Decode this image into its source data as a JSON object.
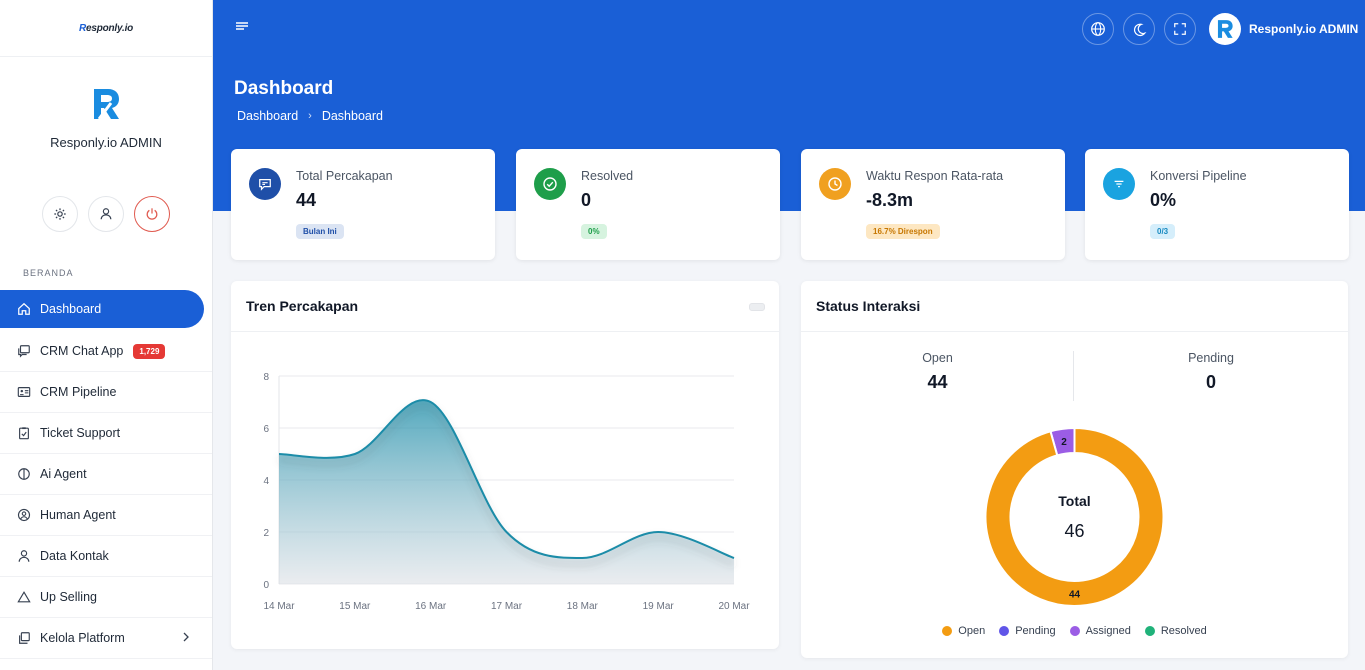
{
  "app": {
    "logo_text": "Responly.io",
    "logo_prefix": "R",
    "logo_suffix": "esponly.io"
  },
  "profile": {
    "name": "Responly.io ADMIN"
  },
  "sidebar": {
    "section_label": "BERANDA",
    "items": [
      {
        "label": "Dashboard",
        "icon": "home-icon",
        "active": true
      },
      {
        "label": "CRM Chat App",
        "icon": "chat-icon",
        "badge": "1,729"
      },
      {
        "label": "CRM Pipeline",
        "icon": "id-card-icon"
      },
      {
        "label": "Ticket Support",
        "icon": "clipboard-check-icon"
      },
      {
        "label": "Ai Agent",
        "icon": "half-circle-icon"
      },
      {
        "label": "Human Agent",
        "icon": "user-circle-icon"
      },
      {
        "label": "Data Kontak",
        "icon": "user-icon"
      },
      {
        "label": "Up Selling",
        "icon": "triangle-icon"
      },
      {
        "label": "Kelola Platform",
        "icon": "copy-icon",
        "chevron": true
      }
    ]
  },
  "header": {
    "user_name": "Responly.io ADMIN"
  },
  "page": {
    "title": "Dashboard",
    "breadcrumb": [
      "Dashboard",
      "Dashboard"
    ]
  },
  "stats": [
    {
      "label": "Total Percakapan",
      "value": "44",
      "pill": "Bulan Ini",
      "icon": "message-icon",
      "color": "#1f4fa8",
      "pill_bg": "#dbe4f3",
      "pill_fg": "#1f4fa8"
    },
    {
      "label": "Resolved",
      "value": "0",
      "pill": "0%",
      "icon": "check-circle-icon",
      "color": "#1e9e4a",
      "pill_bg": "#d6f3df",
      "pill_fg": "#1e9e4a"
    },
    {
      "label": "Waktu Respon Rata-rata",
      "value": "-8.3m",
      "pill": "16.7% Direspon",
      "icon": "clock-icon",
      "color": "#f0a020",
      "pill_bg": "#fde7c2",
      "pill_fg": "#c77700"
    },
    {
      "label": "Konversi Pipeline",
      "value": "0%",
      "pill": "0/3",
      "icon": "filter-icon",
      "color": "#1aa3e0",
      "pill_bg": "#d5eefb",
      "pill_fg": "#1789c0"
    }
  ],
  "trend_panel": {
    "title": "Tren Percakapan"
  },
  "status_panel": {
    "title": "Status Interaksi",
    "open_label": "Open",
    "open_value": "44",
    "pending_label": "Pending",
    "pending_value": "0",
    "total_label": "Total",
    "total_value": "46"
  },
  "chart_data": [
    {
      "type": "area",
      "title": "Tren Percakapan",
      "categories": [
        "14 Mar",
        "15 Mar",
        "16 Mar",
        "17 Mar",
        "18 Mar",
        "19 Mar",
        "20 Mar"
      ],
      "values": [
        5,
        5,
        7,
        2,
        1,
        2,
        1
      ],
      "ylim": [
        0,
        8
      ],
      "yticks": [
        0,
        2,
        4,
        6,
        8
      ],
      "grid": true,
      "line_color": "#1a8ca8"
    },
    {
      "type": "pie",
      "variant": "donut",
      "labels": [
        "Open",
        "Pending",
        "Assigned",
        "Resolved"
      ],
      "values": [
        44,
        0,
        2,
        0
      ],
      "colors": [
        "#f39c12",
        "#6055e8",
        "#9b5de5",
        "#20b27a"
      ],
      "legend": "bottom"
    }
  ],
  "colors": {
    "primary": "#1a5fd6",
    "danger": "#e53935"
  }
}
